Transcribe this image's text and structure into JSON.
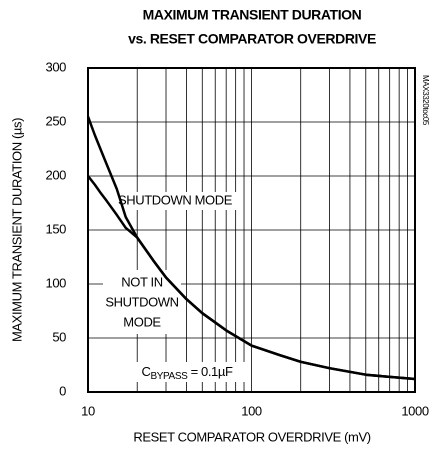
{
  "chart_data": {
    "type": "line",
    "title": [
      "MAXIMUM TRANSIENT DURATION",
      "vs. RESET COMPARATOR OVERDRIVE"
    ],
    "xlabel": "RESET COMPARATOR OVERDRIVE (mV)",
    "ylabel": "MAXIMUM TRANSIENT DURATION (µs)",
    "side_note": "MAX3320toc05",
    "xscale": "log",
    "xlim": [
      10,
      1000
    ],
    "xticks": [
      10,
      100,
      1000
    ],
    "xgrid": [
      20,
      30,
      40,
      50,
      60,
      70,
      80,
      90,
      200,
      300,
      400,
      500,
      600,
      700,
      800,
      900
    ],
    "ylim": [
      0,
      300
    ],
    "yticks": [
      0,
      50,
      100,
      150,
      200,
      250,
      300
    ],
    "grid": true,
    "x": [
      10,
      11,
      12,
      13,
      15,
      17,
      20,
      25,
      30,
      40,
      50,
      70,
      100,
      150,
      200,
      300,
      500,
      700,
      1000
    ],
    "series": [
      {
        "name": "SHUTDOWN MODE",
        "color": "#000000",
        "values": [
          255,
          238,
          224,
          211,
          188,
          162,
          143,
          122,
          106,
          86,
          73,
          57,
          43,
          34,
          28,
          22,
          16,
          14,
          12
        ]
      },
      {
        "name": "NOT IN SHUTDOWN MODE",
        "color": "#000000",
        "values": [
          200,
          192,
          184,
          177,
          164,
          152,
          143,
          122,
          106,
          86,
          73,
          57,
          43,
          34,
          28,
          22,
          16,
          14,
          12
        ]
      }
    ],
    "labels": [
      [
        "SHUTDOWN MODE"
      ],
      [
        "NOT IN",
        "SHUTDOWN",
        "MODE"
      ]
    ],
    "annotation": {
      "text": "C",
      "subscript": "BYPASS",
      "rest": " = 0.1µF"
    }
  }
}
